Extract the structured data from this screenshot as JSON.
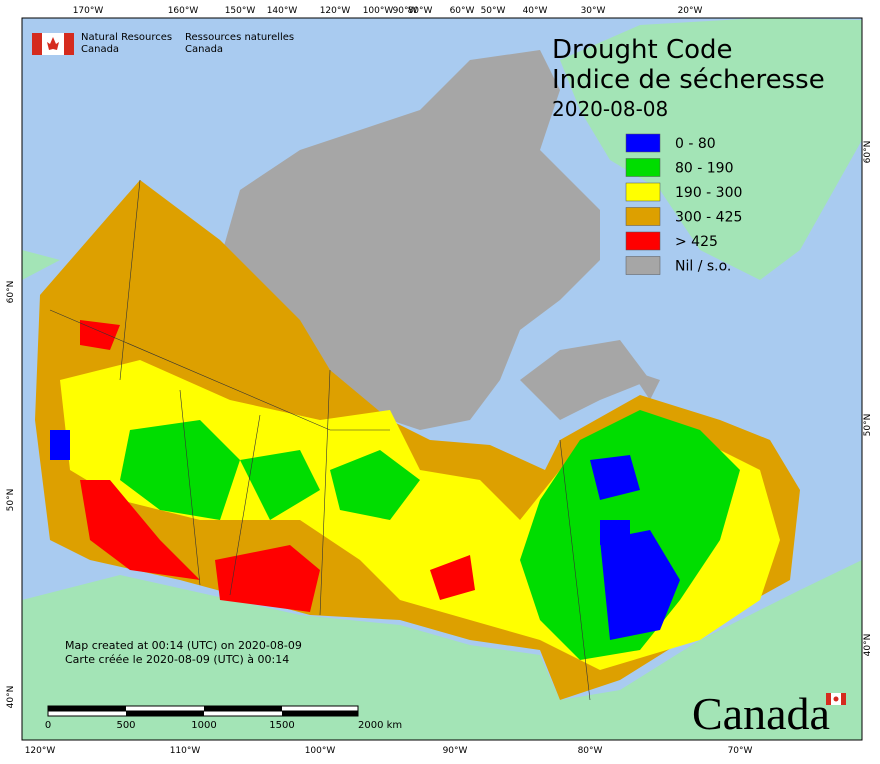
{
  "header": {
    "agency_en": [
      "Natural Resources",
      "Canada"
    ],
    "agency_fr": [
      "Ressources naturelles",
      "Canada"
    ]
  },
  "title": [
    "Drought Code",
    "Indice de sécheresse"
  ],
  "date": "2020-08-08",
  "legend": [
    {
      "label": "0 - 80",
      "color": "#0000ff"
    },
    {
      "label": "80 - 190",
      "color": "#00dd00"
    },
    {
      "label": "190 - 300",
      "color": "#ffff00"
    },
    {
      "label": "300 - 425",
      "color": "#dda000"
    },
    {
      "label": "> 425",
      "color": "#ff0000"
    },
    {
      "label": "Nil / s.o.",
      "color": "#a6a6a6"
    }
  ],
  "top_axis": [
    "170°W",
    "160°W",
    "150°W",
    "140°W",
    "120°W",
    "100°W",
    "90°W",
    "80°W",
    "60°W",
    "50°W",
    "40°W",
    "30°W",
    "20°W"
  ],
  "bottom_axis": [
    "120°W",
    "110°W",
    "100°W",
    "90°W",
    "80°W",
    "70°W"
  ],
  "left_axis": [
    "60°N",
    "50°N",
    "40°N"
  ],
  "right_axis": [
    "60°N",
    "50°N",
    "40°N"
  ],
  "notes": [
    "Map created at 00:14 (UTC) on 2020-08-09",
    "Carte créée le 2020-08-09 (UTC) à 00:14"
  ],
  "scale": [
    "0",
    "500",
    "1000",
    "1500",
    "2000  km"
  ],
  "wordmark": "Canada"
}
